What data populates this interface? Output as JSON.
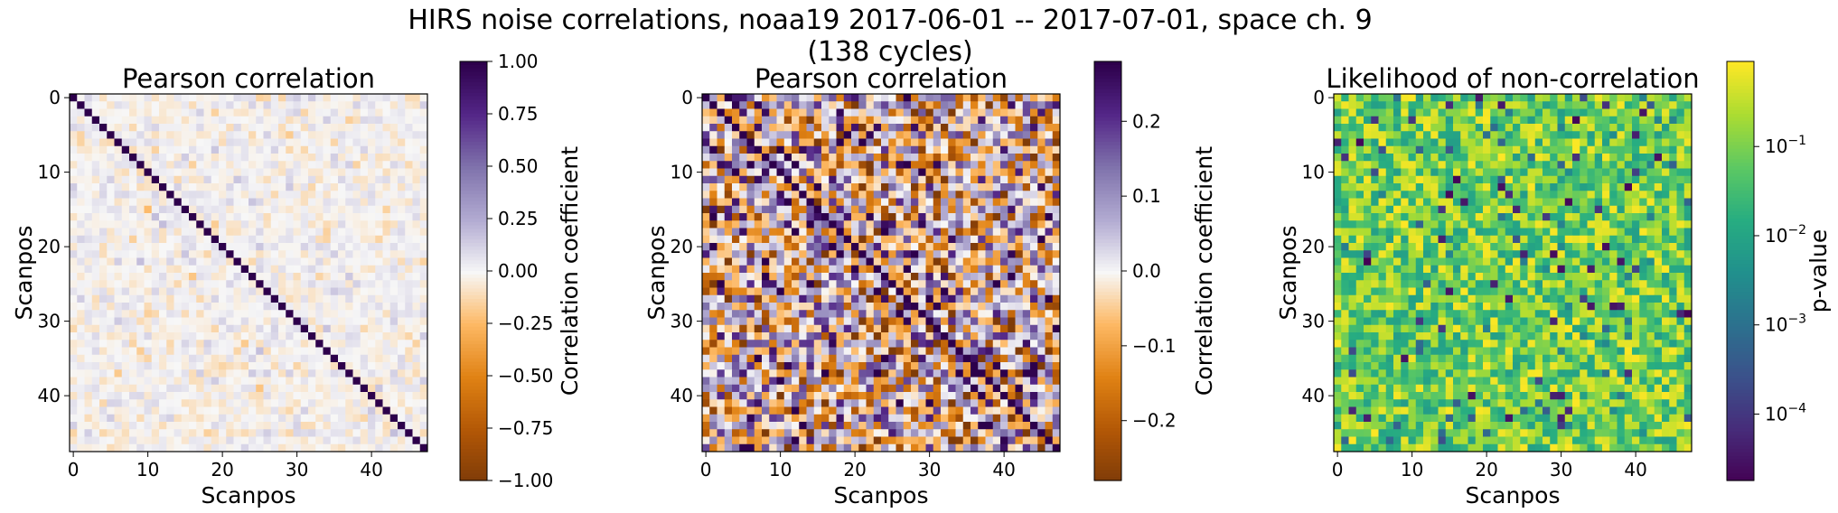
{
  "figure": {
    "title_line1": "HIRS noise correlations, noaa19 2017-06-01 -- 2017-07-01, space ch. 9",
    "title_line2": "(138 cycles)"
  },
  "chart_data": [
    {
      "type": "heatmap",
      "title": "Pearson correlation",
      "xlabel": "Scanpos",
      "ylabel": "Scanpos",
      "grid_size": 48,
      "xticks": [
        0,
        10,
        20,
        30,
        40
      ],
      "yticks": [
        0,
        10,
        20,
        30,
        40
      ],
      "colormap": "PuOr",
      "clim": [
        -1.0,
        1.0
      ],
      "diagonal_value": 1.0,
      "off_diagonal_typical_range": [
        -0.25,
        0.25
      ],
      "colorbar": {
        "label": "Correlation coefficient",
        "ticks": [
          "1.00",
          "0.75",
          "0.50",
          "0.25",
          "0.00",
          "−0.25",
          "−0.50",
          "−0.75",
          "−1.00"
        ],
        "tick_values": [
          1.0,
          0.75,
          0.5,
          0.25,
          0.0,
          -0.25,
          -0.5,
          -0.75,
          -1.0
        ]
      }
    },
    {
      "type": "heatmap",
      "title": "Pearson correlation",
      "xlabel": "Scanpos",
      "ylabel": "Scanpos",
      "grid_size": 48,
      "xticks": [
        0,
        10,
        20,
        30,
        40
      ],
      "yticks": [
        0,
        10,
        20,
        30,
        40
      ],
      "colormap": "PuOr",
      "clim": [
        -0.28,
        0.28
      ],
      "diagonal_value": 1.0,
      "off_diagonal_typical_range": [
        -0.28,
        0.28
      ],
      "colorbar": {
        "label": "Correlation coefficient",
        "ticks": [
          "0.2",
          "0.1",
          "0.0",
          "−0.1",
          "−0.2"
        ],
        "tick_values": [
          0.2,
          0.1,
          0.0,
          -0.1,
          -0.2
        ]
      }
    },
    {
      "type": "heatmap",
      "title": "Likelihood of non-correlation",
      "xlabel": "Scanpos",
      "ylabel": "Scanpos",
      "grid_size": 48,
      "xticks": [
        0,
        10,
        20,
        30,
        40
      ],
      "yticks": [
        0,
        10,
        20,
        30,
        40
      ],
      "colormap": "viridis",
      "scale": "log",
      "clim": [
        1.8e-05,
        0.9
      ],
      "colorbar": {
        "label": "p-value",
        "ticks": [
          {
            "base": "10",
            "exp": "−1",
            "value": 0.1
          },
          {
            "base": "10",
            "exp": "−2",
            "value": 0.01
          },
          {
            "base": "10",
            "exp": "−3",
            "value": 0.001
          },
          {
            "base": "10",
            "exp": "−4",
            "value": 0.0001
          }
        ]
      }
    }
  ]
}
